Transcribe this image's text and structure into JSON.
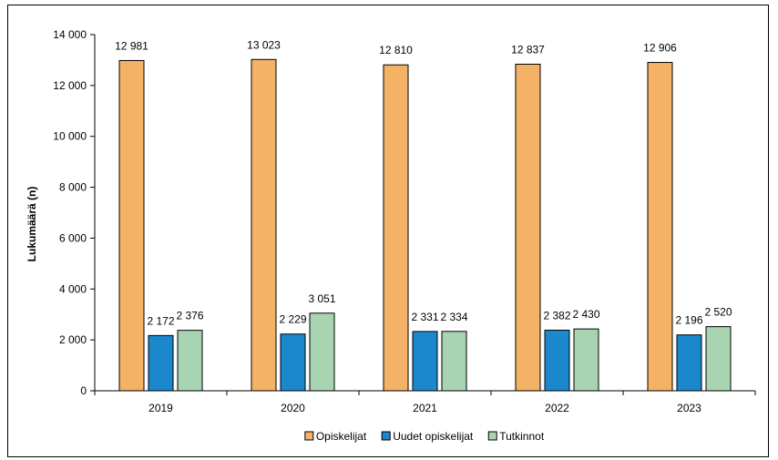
{
  "chart_data": {
    "type": "bar",
    "title": "",
    "xlabel": "",
    "ylabel": "Lukumäärä (n)",
    "ylim": [
      0,
      14000
    ],
    "y_ticks": [
      0,
      2000,
      4000,
      6000,
      8000,
      10000,
      12000,
      14000
    ],
    "y_tick_labels": [
      "0",
      "2 000",
      "4 000",
      "6 000",
      "8 000",
      "10 000",
      "12 000",
      "14 000"
    ],
    "categories": [
      "2019",
      "2020",
      "2021",
      "2022",
      "2023"
    ],
    "grid": false,
    "legend_position": "bottom",
    "series": [
      {
        "name": "Opiskelijat",
        "color": "#F4B266",
        "values": [
          12981,
          13023,
          12810,
          12837,
          12906
        ],
        "labels": [
          "12 981",
          "13 023",
          "12 810",
          "12 837",
          "12 906"
        ]
      },
      {
        "name": "Uudet opiskelijat",
        "color": "#1B87CC",
        "values": [
          2172,
          2229,
          2331,
          2382,
          2196
        ],
        "labels": [
          "2 172",
          "2 229",
          "2 331",
          "2 382",
          "2 196"
        ]
      },
      {
        "name": "Tutkinnot",
        "color": "#A8D4B2",
        "values": [
          2376,
          3051,
          2334,
          2430,
          2520
        ],
        "labels": [
          "2 376",
          "3 051",
          "2 334",
          "2 430",
          "2 520"
        ]
      }
    ]
  }
}
